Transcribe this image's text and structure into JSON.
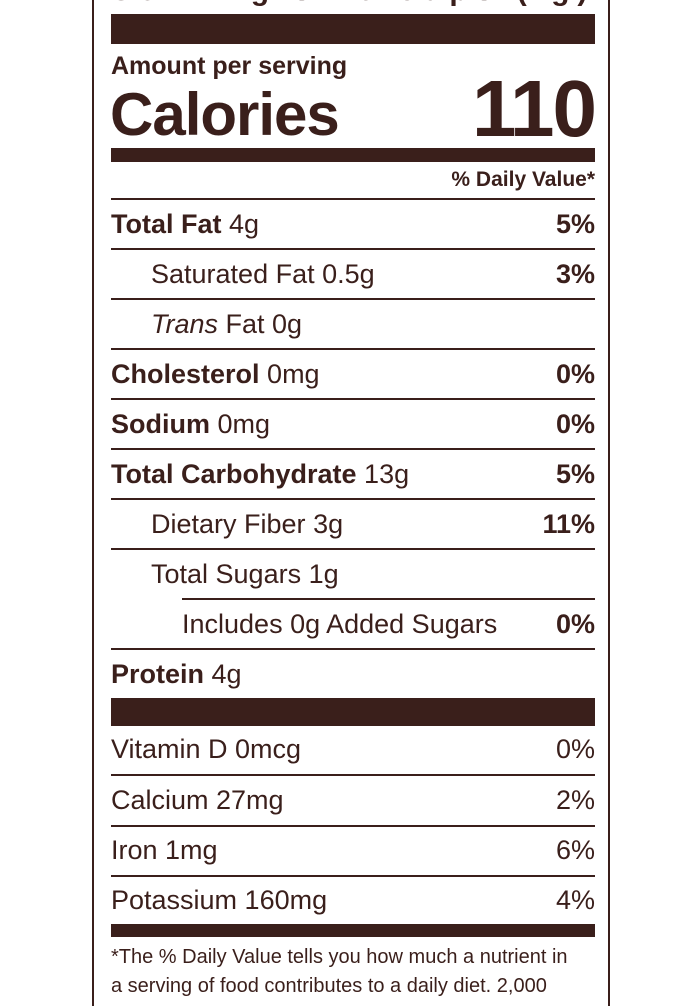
{
  "header": {
    "serving_size_cutoff": "Serving size   cups (   g)",
    "amount_per_serving": "Amount per serving",
    "calories_label": "Calories",
    "calories_value": "110",
    "daily_value_header": "% Daily Value*"
  },
  "nutrients": [
    {
      "name": "Total Fat",
      "amount": "4g",
      "dv": "5%"
    },
    {
      "name": "Saturated Fat",
      "amount": "0.5g",
      "dv": "3%"
    },
    {
      "name": "Trans",
      "amount": "Fat 0g",
      "dv": ""
    },
    {
      "name": "Cholesterol",
      "amount": "0mg",
      "dv": "0%"
    },
    {
      "name": "Sodium",
      "amount": "0mg",
      "dv": "0%"
    },
    {
      "name": "Total Carbohydrate",
      "amount": "13g",
      "dv": "5%"
    },
    {
      "name": "Dietary Fiber",
      "amount": "3g",
      "dv": "11%"
    },
    {
      "name": "Total Sugars",
      "amount": "1g",
      "dv": ""
    },
    {
      "name": "Includes 0g Added Sugars",
      "amount": "",
      "dv": "0%"
    },
    {
      "name": "Protein",
      "amount": "4g",
      "dv": ""
    }
  ],
  "vitamins": [
    {
      "label": "Vitamin D 0mcg",
      "dv": "0%"
    },
    {
      "label": "Calcium 27mg",
      "dv": "2%"
    },
    {
      "label": "Iron 1mg",
      "dv": "6%"
    },
    {
      "label": "Potassium 160mg",
      "dv": "4%"
    }
  ],
  "footnote": {
    "line1": "*The % Daily Value tells you how much a nutrient in",
    "line2": "a serving of food contributes to a daily diet. 2,000"
  },
  "colors": {
    "ink": "#3a1f1b",
    "background": "#ffffff"
  }
}
